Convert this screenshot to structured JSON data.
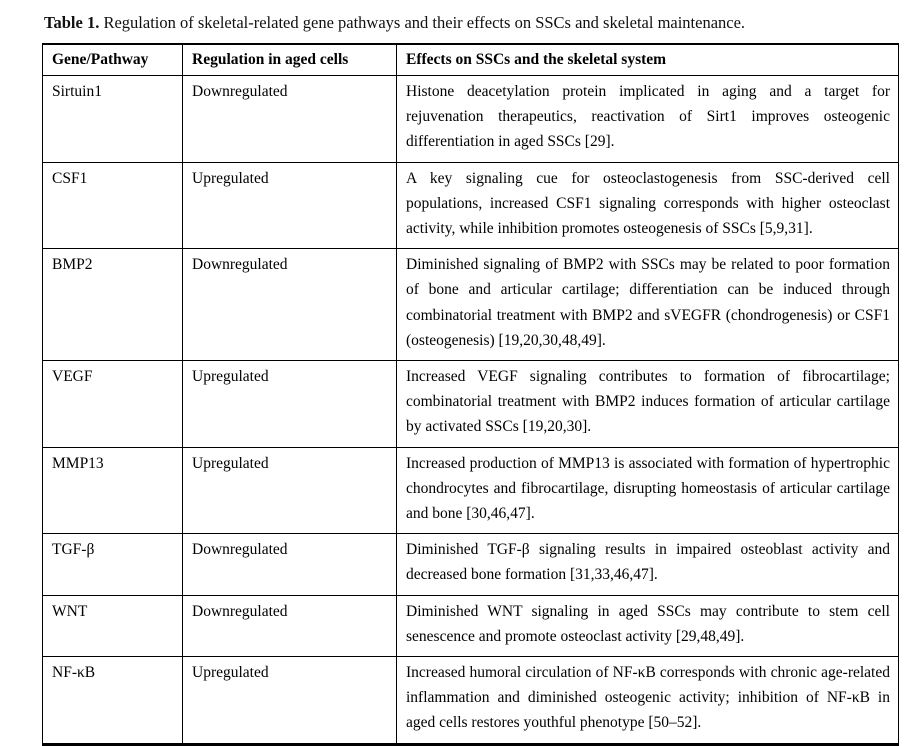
{
  "caption": {
    "label": "Table 1.",
    "text": " Regulation of skeletal-related gene pathways and their effects on SSCs and skeletal maintenance."
  },
  "table": {
    "headers": [
      "Gene/Pathway",
      "Regulation in aged cells",
      "Effects on SSCs and the skeletal system"
    ],
    "rows": [
      {
        "gene": "Sirtuin1",
        "regulation": "Downregulated",
        "effects": "Histone deacetylation protein implicated in aging and a target for rejuvenation therapeutics, reactivation of Sirt1 improves osteogenic differentiation in aged SSCs [29]."
      },
      {
        "gene": "CSF1",
        "regulation": "Upregulated",
        "effects": "A key signaling cue for osteoclastogenesis from SSC-derived cell populations, increased CSF1 signaling corresponds with higher osteoclast activity, while inhibition promotes osteogenesis of SSCs [5,9,31]."
      },
      {
        "gene": "BMP2",
        "regulation": "Downregulated",
        "effects": "Diminished signaling of BMP2 with SSCs may be related to poor formation of bone and articular cartilage; differentiation can be induced through combinatorial treatment with BMP2 and sVEGFR (chondrogenesis) or CSF1 (osteogenesis) [19,20,30,48,49]."
      },
      {
        "gene": "VEGF",
        "regulation": "Upregulated",
        "effects": "Increased VEGF signaling contributes to formation of fibrocartilage; combinatorial treatment with BMP2 induces formation of articular cartilage by activated SSCs [19,20,30]."
      },
      {
        "gene": "MMP13",
        "regulation": "Upregulated",
        "effects": "Increased production of MMP13 is associated with formation of hypertrophic chondrocytes and fibrocartilage, disrupting homeostasis of articular cartilage and bone [30,46,47]."
      },
      {
        "gene": "TGF-β",
        "regulation": "Downregulated",
        "effects": "Diminished TGF-β signaling results in impaired osteoblast activity and decreased bone formation [31,33,46,47]."
      },
      {
        "gene": "WNT",
        "regulation": "Downregulated",
        "effects": "Diminished WNT signaling in aged SSCs may contribute to stem cell senescence and promote osteoclast activity [29,48,49]."
      },
      {
        "gene": "NF-κB",
        "regulation": "Upregulated",
        "effects": "Increased humoral circulation of NF-κB corresponds with chronic age-related inflammation and diminished osteogenic activity; inhibition of NF-κB in aged cells restores youthful phenotype [50–52]."
      }
    ]
  }
}
